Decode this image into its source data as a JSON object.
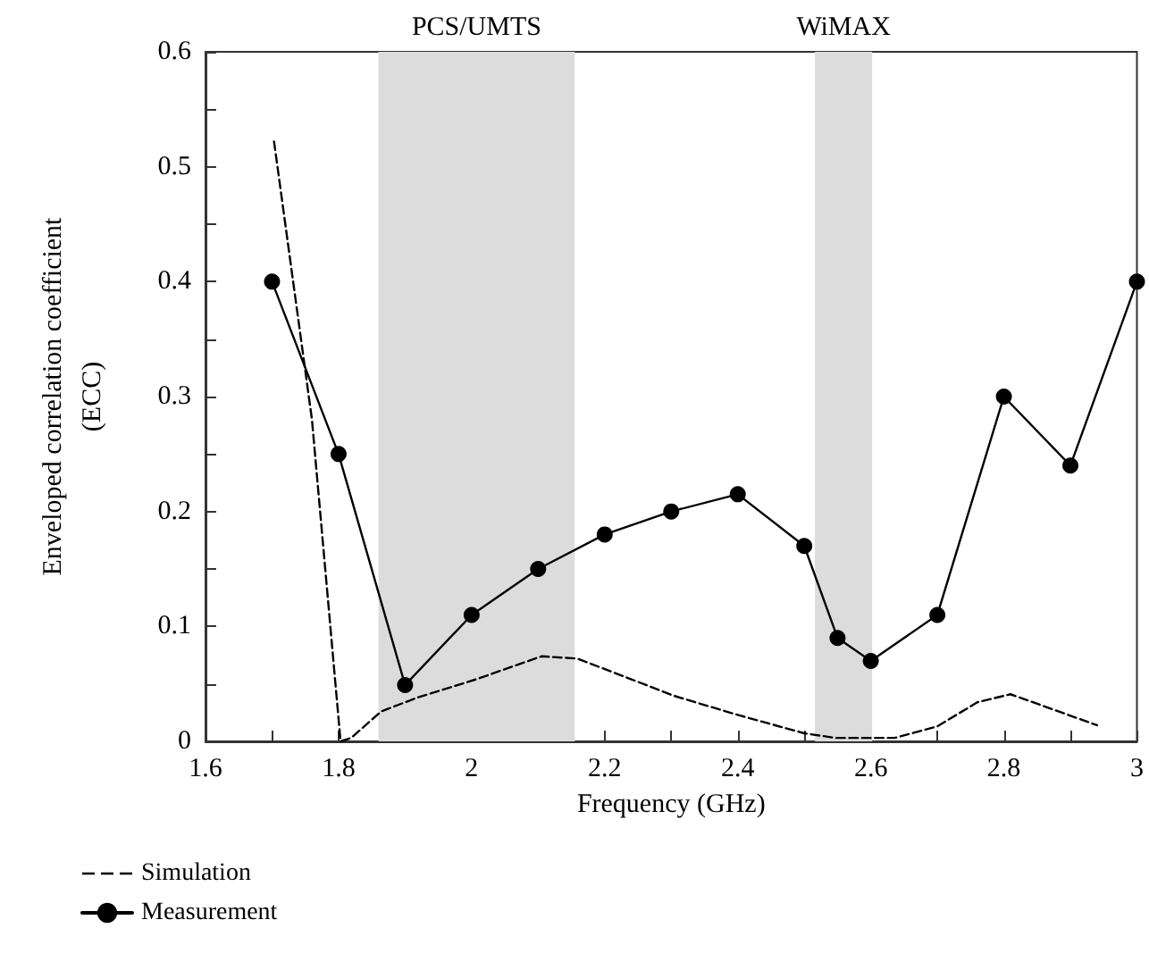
{
  "chart_data": {
    "type": "line",
    "xlabel": "Frequency (GHz)",
    "ylabel": "Enveloped correlation coefficient\n(ECC)",
    "xlim": [
      1.6,
      3
    ],
    "ylim": [
      0,
      0.6
    ],
    "xticks": [
      1.6,
      {
        "value": 1.7,
        "label": null
      },
      1.8,
      {
        "value": 1.9,
        "label": null
      },
      2,
      {
        "value": 2.1,
        "label": null
      },
      2.2,
      {
        "value": 2.3,
        "label": null
      },
      2.4,
      {
        "value": 2.5,
        "label": null
      },
      2.6,
      {
        "value": 2.7,
        "label": null
      },
      2.8,
      {
        "value": 2.9,
        "label": null
      },
      3
    ],
    "yticks": [
      0,
      {
        "value": 0.05,
        "label": null
      },
      0.1,
      {
        "value": 0.15,
        "label": null
      },
      0.2,
      {
        "value": 0.25,
        "label": null
      },
      0.3,
      {
        "value": 0.35,
        "label": null
      },
      0.4,
      {
        "value": 0.45,
        "label": null
      },
      0.5,
      {
        "value": 0.55,
        "label": null
      },
      0.6
    ],
    "grid": false,
    "legend": "bottom left",
    "bands": [
      {
        "axis": "x",
        "from": 1.86,
        "to": 2.155,
        "label": "PCS/UMTS",
        "color": "#dcdcdc"
      },
      {
        "axis": "x",
        "from": 2.516,
        "to": 2.602,
        "label": "WiMAX",
        "color": "#dcdcdc"
      }
    ],
    "series": [
      {
        "name": "Simulation",
        "color": "#000000",
        "line_style": "dashed",
        "marker": "none",
        "x": [
          1.703,
          1.76,
          1.803,
          1.819,
          1.864,
          1.918,
          2.007,
          2.105,
          2.159,
          2.24,
          2.302,
          2.4,
          2.5,
          2.547,
          2.636,
          2.7,
          2.76,
          2.81,
          2.94
        ],
        "values": [
          0.522,
          0.28,
          0,
          0.003,
          0.026,
          0.038,
          0.054,
          0.074,
          0.072,
          0.054,
          0.04,
          0.023,
          0.007,
          0.003,
          0.003,
          0.013,
          0.034,
          0.041,
          0.014
        ]
      },
      {
        "name": "Measurement",
        "color": "#000000",
        "line_style": "solid",
        "marker": "circle",
        "x": [
          1.7,
          1.8,
          1.9,
          2.0,
          2.1,
          2.2,
          2.3,
          2.4,
          2.5,
          2.55,
          2.6,
          2.7,
          2.8,
          2.9,
          3.0
        ],
        "values": [
          0.4,
          0.25,
          0.049,
          0.11,
          0.15,
          0.18,
          0.2,
          0.215,
          0.17,
          0.09,
          0.07,
          0.11,
          0.3,
          0.24,
          0.4
        ]
      }
    ]
  }
}
